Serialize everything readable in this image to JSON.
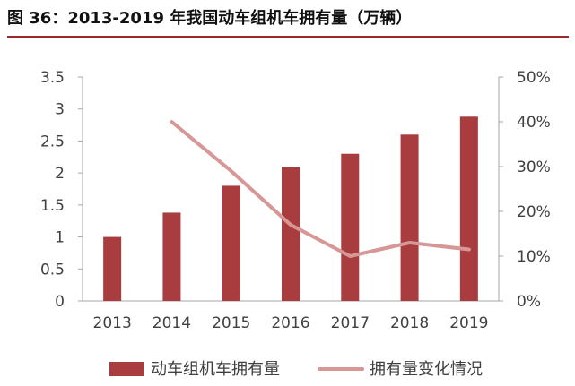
{
  "title": "图 36：2013-2019 年我国动车组机车拥有量（万辆）",
  "chart_data": {
    "type": "bar",
    "categories": [
      "2013",
      "2014",
      "2015",
      "2016",
      "2017",
      "2018",
      "2019"
    ],
    "series": [
      {
        "name": "动车组机车拥有量",
        "type": "bar",
        "axis": "left",
        "values": [
          1.0,
          1.38,
          1.8,
          2.09,
          2.3,
          2.6,
          2.88
        ]
      },
      {
        "name": "拥有量变化情况",
        "type": "line",
        "axis": "right",
        "values": [
          null,
          0.4,
          0.29,
          0.17,
          0.1,
          0.13,
          0.115
        ]
      }
    ],
    "y_left": {
      "min": 0,
      "max": 3.5,
      "ticks": [
        "0",
        "0.5",
        "1",
        "1.5",
        "2",
        "2.5",
        "3",
        "3.5"
      ]
    },
    "y_right": {
      "min": 0,
      "max": 0.5,
      "ticks": [
        "0%",
        "10%",
        "20%",
        "30%",
        "40%",
        "50%"
      ]
    },
    "colors": {
      "bar": "#a83c3e",
      "line": "#d69796",
      "axis": "#a6a6a6",
      "accent": "#9e2a2b"
    },
    "legend_position": "bottom",
    "grid": false
  }
}
